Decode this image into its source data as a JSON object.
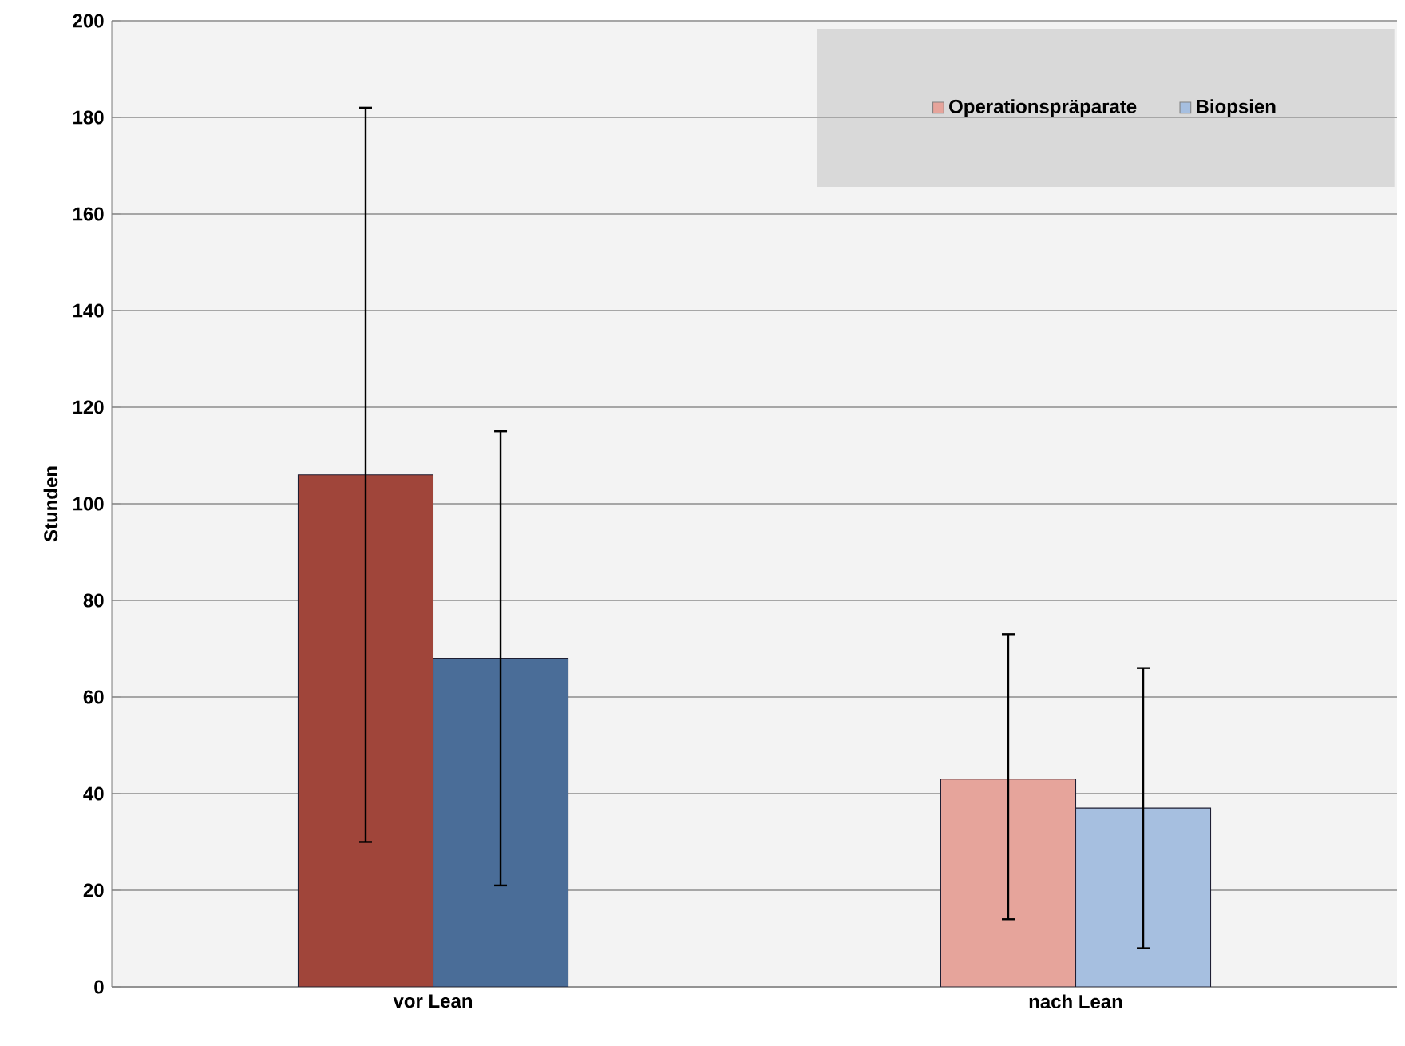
{
  "chart_data": {
    "type": "bar",
    "ylabel": "Stunden",
    "categories": [
      "vor Lean",
      "nach Lean"
    ],
    "series": [
      {
        "name": "Operationspräparate",
        "color": "#e6a49b",
        "colors": [
          "#a0453a",
          "#e6a49b"
        ],
        "values": [
          106,
          43
        ],
        "errors": [
          [
            30,
            182
          ],
          [
            14,
            73
          ]
        ]
      },
      {
        "name": "Biopsien",
        "color": "#a6bfe0",
        "colors": [
          "#4a6d98",
          "#a6bfe0"
        ],
        "values": [
          68,
          37
        ],
        "errors": [
          [
            21,
            115
          ],
          [
            8,
            66
          ]
        ]
      }
    ],
    "ylim": [
      0,
      200
    ],
    "yticks": [
      0,
      20,
      40,
      60,
      80,
      100,
      120,
      140,
      160,
      180,
      200
    ],
    "grid": "y",
    "legend": "top right"
  }
}
